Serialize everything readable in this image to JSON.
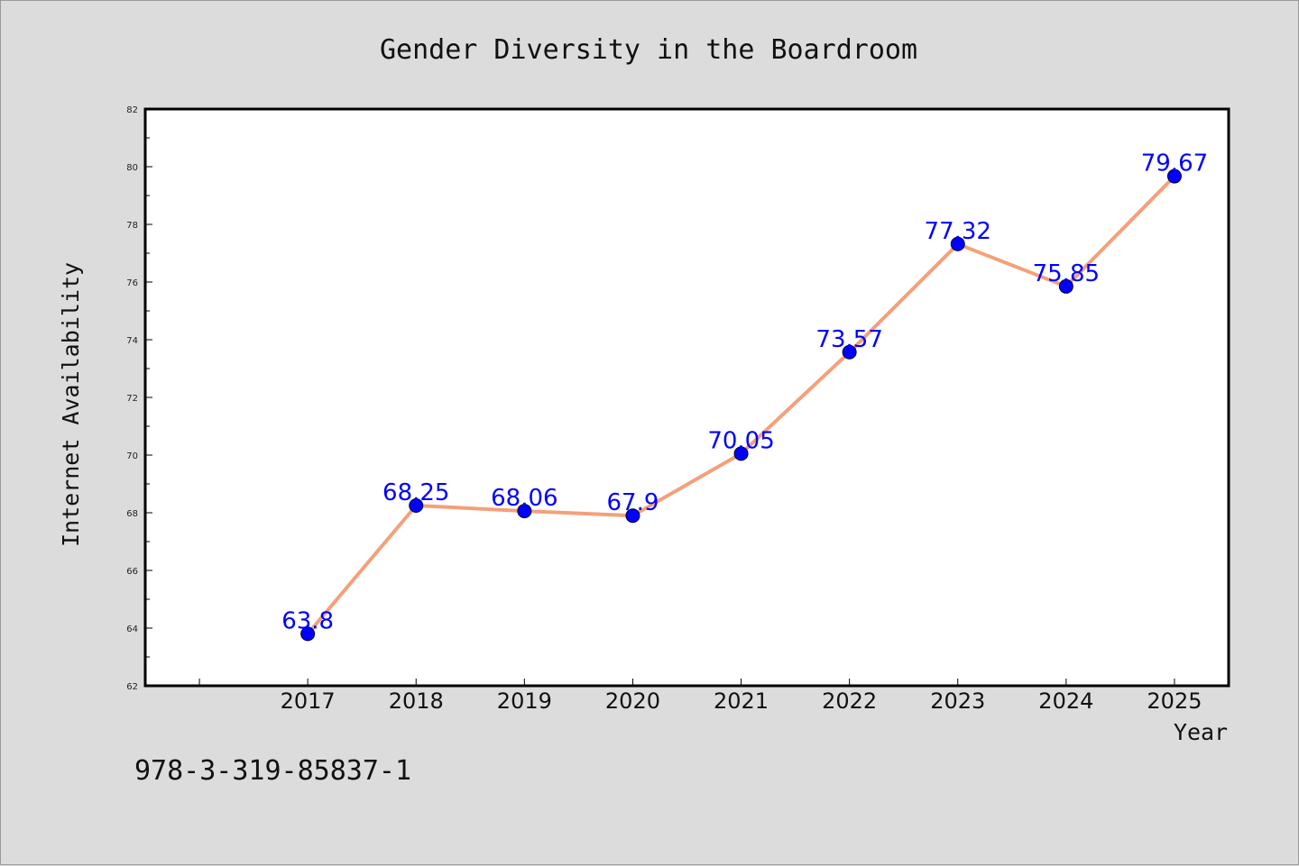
{
  "chart_data": {
    "type": "line",
    "title": "Gender Diversity in the Boardroom",
    "xlabel": "Year",
    "ylabel": "Internet Availability",
    "categories": [
      "2017",
      "2018",
      "2019",
      "2020",
      "2021",
      "2022",
      "2023",
      "2024",
      "2025"
    ],
    "series": [
      {
        "values": [
          63.8,
          68.25,
          68.06,
          67.9,
          70.05,
          73.57,
          77.32,
          75.85,
          79.67
        ],
        "labels": [
          "63.8",
          "68.25",
          "68.06",
          "67.9",
          "70.05",
          "73.57",
          "77.32",
          "75.85",
          "79.67"
        ],
        "line_color": "#f4a07a",
        "marker_color": "#0000ff"
      }
    ],
    "ylim": [
      62,
      82
    ],
    "yticks": [
      "62",
      "64",
      "66",
      "68",
      "70",
      "72",
      "74",
      "76",
      "78",
      "80",
      "82"
    ],
    "grid": false,
    "legend": "none"
  },
  "footer": {
    "isbn": "978-3-319-85837-1"
  },
  "colors": {
    "background": "#dcdcdc",
    "plot_area": "#ffffff",
    "line": "#f4a07a",
    "marker": "#0000ff",
    "data_label": "#0000ff"
  }
}
